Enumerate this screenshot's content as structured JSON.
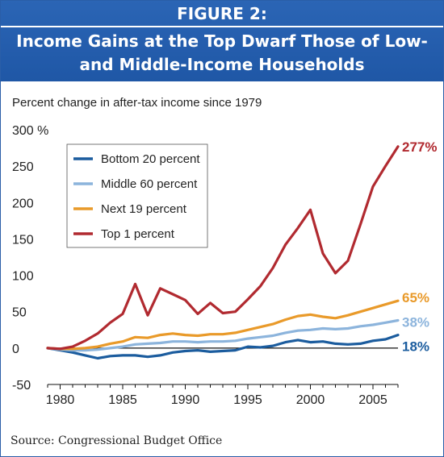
{
  "figure": {
    "label": "FIGURE 2:",
    "title": "Income Gains at the Top Dwarf Those of Low- and Middle-Income Households",
    "source": "Source: Congressional Budget Office",
    "banner_color": "#2060ad"
  },
  "chart_data": {
    "type": "line",
    "title": "Income Gains at the Top Dwarf Those of Low- and Middle-Income Households",
    "ylabel": "Percent change in after-tax income since 1979",
    "xlabel": "",
    "xlim": [
      1979,
      2007
    ],
    "ylim": [
      -50,
      300
    ],
    "x_ticks": [
      1980,
      1985,
      1990,
      1995,
      2000,
      2005
    ],
    "y_ticks": [
      -50,
      0,
      50,
      100,
      150,
      200,
      250,
      300
    ],
    "y_tick_labels": [
      "-50",
      "0",
      "50",
      "100",
      "150",
      "200",
      "250",
      "300 %"
    ],
    "grid": false,
    "legend_position": "top-left",
    "x": [
      1979,
      1980,
      1981,
      1982,
      1983,
      1984,
      1985,
      1986,
      1987,
      1988,
      1989,
      1990,
      1991,
      1992,
      1993,
      1994,
      1995,
      1996,
      1997,
      1998,
      1999,
      2000,
      2001,
      2002,
      2003,
      2004,
      2005,
      2006,
      2007
    ],
    "series": [
      {
        "name": "Bottom 20 percent",
        "color": "#1b5c9e",
        "end_label": "18%",
        "values": [
          0,
          -3,
          -6,
          -10,
          -14,
          -11,
          -10,
          -10,
          -12,
          -10,
          -6,
          -4,
          -3,
          -5,
          -4,
          -3,
          2,
          1,
          3,
          8,
          11,
          8,
          9,
          6,
          5,
          6,
          10,
          12,
          18
        ]
      },
      {
        "name": "Middle 60 percent",
        "color": "#8cb4dc",
        "end_label": "38%",
        "values": [
          0,
          -2,
          -3,
          -3,
          -2,
          0,
          2,
          5,
          6,
          7,
          9,
          9,
          8,
          9,
          9,
          10,
          13,
          15,
          17,
          21,
          24,
          25,
          27,
          26,
          27,
          30,
          32,
          35,
          38
        ]
      },
      {
        "name": "Next 19 percent",
        "color": "#e99a2a",
        "end_label": "65%",
        "values": [
          0,
          -1,
          -1,
          0,
          2,
          6,
          9,
          15,
          14,
          18,
          20,
          18,
          17,
          19,
          19,
          21,
          25,
          29,
          33,
          39,
          44,
          46,
          43,
          41,
          45,
          50,
          55,
          60,
          65
        ]
      },
      {
        "name": "Top 1 percent",
        "color": "#b12a30",
        "end_label": "277%",
        "values": [
          0,
          -1,
          2,
          10,
          20,
          35,
          47,
          88,
          45,
          82,
          74,
          66,
          47,
          62,
          48,
          50,
          67,
          85,
          110,
          142,
          165,
          190,
          130,
          103,
          120,
          170,
          222,
          250,
          277
        ]
      }
    ]
  }
}
